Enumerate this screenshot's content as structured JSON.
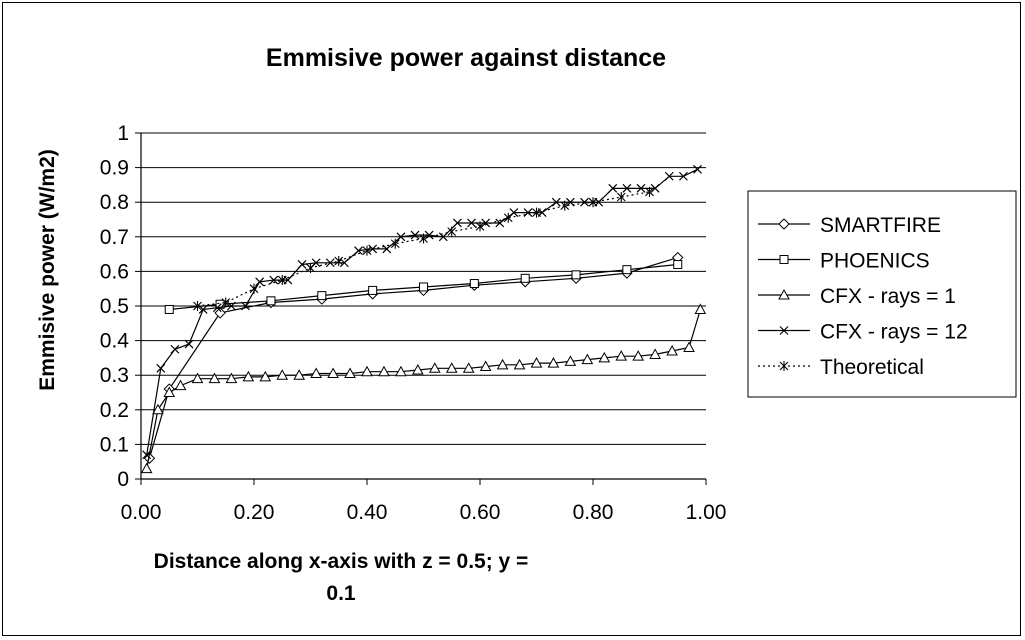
{
  "chart_data": {
    "type": "line",
    "title": "Emmisive power against distance",
    "xlabel_lines": [
      "Distance along x-axis with z = 0.5; y =",
      "0.1"
    ],
    "ylabel": "Emmisive power (W/m2)",
    "xlim": [
      0,
      1
    ],
    "ylim": [
      0,
      1
    ],
    "xticks": [
      "0.00",
      "0.20",
      "0.40",
      "0.60",
      "0.80",
      "1.00"
    ],
    "yticks": [
      "0",
      "0.1",
      "0.2",
      "0.3",
      "0.4",
      "0.5",
      "0.6",
      "0.7",
      "0.8",
      "0.9",
      "1"
    ],
    "grid": "horizontal",
    "legend_position": "right",
    "series": [
      {
        "name": "SMARTFIRE",
        "marker": "diamond",
        "dash": "solid",
        "x": [
          0.015,
          0.05,
          0.14,
          0.23,
          0.32,
          0.41,
          0.5,
          0.59,
          0.68,
          0.77,
          0.86,
          0.95
        ],
        "y": [
          0.06,
          0.26,
          0.48,
          0.51,
          0.52,
          0.535,
          0.545,
          0.56,
          0.57,
          0.58,
          0.595,
          0.64
        ]
      },
      {
        "name": "PHOENICS",
        "marker": "square",
        "dash": "solid",
        "x": [
          0.05,
          0.14,
          0.23,
          0.32,
          0.41,
          0.5,
          0.59,
          0.68,
          0.77,
          0.86,
          0.95
        ],
        "y": [
          0.49,
          0.505,
          0.515,
          0.53,
          0.545,
          0.555,
          0.565,
          0.58,
          0.59,
          0.605,
          0.62
        ]
      },
      {
        "name": "CFX - rays = 1",
        "marker": "triangle",
        "dash": "solid",
        "x": [
          0.01,
          0.03,
          0.05,
          0.07,
          0.1,
          0.13,
          0.16,
          0.19,
          0.22,
          0.25,
          0.28,
          0.31,
          0.34,
          0.37,
          0.4,
          0.43,
          0.46,
          0.49,
          0.52,
          0.55,
          0.58,
          0.61,
          0.64,
          0.67,
          0.7,
          0.73,
          0.76,
          0.79,
          0.82,
          0.85,
          0.88,
          0.91,
          0.94,
          0.97,
          0.99
        ],
        "y": [
          0.03,
          0.2,
          0.25,
          0.27,
          0.29,
          0.29,
          0.29,
          0.295,
          0.295,
          0.3,
          0.3,
          0.305,
          0.305,
          0.305,
          0.31,
          0.31,
          0.31,
          0.315,
          0.32,
          0.32,
          0.32,
          0.325,
          0.33,
          0.33,
          0.335,
          0.335,
          0.34,
          0.345,
          0.35,
          0.355,
          0.355,
          0.36,
          0.37,
          0.38,
          0.49
        ]
      },
      {
        "name": "CFX - rays = 12",
        "marker": "x",
        "dash": "solid",
        "x": [
          0.01,
          0.035,
          0.06,
          0.085,
          0.11,
          0.135,
          0.16,
          0.185,
          0.21,
          0.235,
          0.26,
          0.285,
          0.31,
          0.335,
          0.36,
          0.385,
          0.41,
          0.435,
          0.46,
          0.485,
          0.51,
          0.535,
          0.56,
          0.585,
          0.61,
          0.635,
          0.66,
          0.685,
          0.71,
          0.735,
          0.76,
          0.785,
          0.81,
          0.835,
          0.86,
          0.885,
          0.91,
          0.935,
          0.96,
          0.985
        ],
        "y": [
          0.07,
          0.32,
          0.375,
          0.39,
          0.49,
          0.495,
          0.5,
          0.5,
          0.57,
          0.575,
          0.575,
          0.62,
          0.625,
          0.625,
          0.625,
          0.66,
          0.665,
          0.665,
          0.7,
          0.705,
          0.705,
          0.7,
          0.74,
          0.74,
          0.74,
          0.74,
          0.77,
          0.77,
          0.77,
          0.8,
          0.8,
          0.8,
          0.8,
          0.84,
          0.84,
          0.84,
          0.84,
          0.875,
          0.875,
          0.895
        ]
      },
      {
        "name": "Theoretical",
        "marker": "asterisk",
        "dash": "dotted",
        "x": [
          0.1,
          0.15,
          0.2,
          0.25,
          0.3,
          0.35,
          0.4,
          0.45,
          0.5,
          0.55,
          0.6,
          0.65,
          0.7,
          0.75,
          0.8,
          0.85,
          0.9
        ],
        "y": [
          0.5,
          0.51,
          0.55,
          0.575,
          0.61,
          0.63,
          0.66,
          0.68,
          0.695,
          0.715,
          0.73,
          0.755,
          0.77,
          0.79,
          0.8,
          0.815,
          0.83
        ]
      }
    ]
  }
}
